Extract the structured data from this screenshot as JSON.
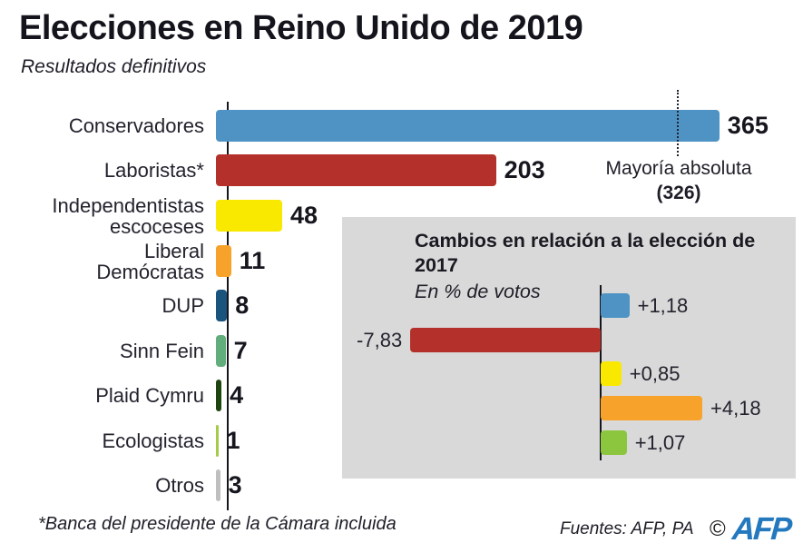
{
  "title": "Elecciones en Reino Unido de 2019",
  "subtitle": "Resultados definitivos",
  "footnote": "*Banca del presidente de la Cámara incluida",
  "sources": "Fuentes: AFP, PA",
  "logo": {
    "copyright": "©",
    "text": "AFP",
    "color": "#2478be"
  },
  "majority": {
    "label": "Mayoría absoluta",
    "value": 326,
    "value_label": "(326)"
  },
  "colors": {
    "conservadores": "#4e93c3",
    "laboristas": "#b3312a",
    "independentistas": "#f9e800",
    "liberal_democratas": "#f6a22b",
    "dup": "#1a547d",
    "sinn_fein": "#61ad7b",
    "plaid_cymru": "#1e440f",
    "ecologistas": "#a3cc49",
    "otros": "#bfbfbf",
    "inset_verdes": "#8cc63e",
    "inset_panel_bg": "#d9d9d9"
  },
  "chart_data": [
    {
      "type": "bar",
      "orientation": "horizontal",
      "title": "Elecciones en Reino Unido de 2019",
      "subtitle": "Resultados definitivos",
      "categories": [
        "Conservadores",
        "Laboristas*",
        "Independentistas escoceses",
        "Liberal Demócratas",
        "DUP",
        "Sinn Fein",
        "Plaid Cymru",
        "Ecologistas",
        "Otros"
      ],
      "category_labels": [
        "Conservadores",
        "Laboristas*",
        "Independentistas\nescoceses",
        "Liberal\nDemócratas",
        "DUP",
        "Sinn Fein",
        "Plaid Cymru",
        "Ecologistas",
        "Otros"
      ],
      "values": [
        365,
        203,
        48,
        11,
        8,
        7,
        4,
        1,
        3
      ],
      "value_labels": [
        "365",
        "203",
        "48",
        "11",
        "8",
        "7",
        "4",
        "1",
        "3"
      ],
      "colors": [
        "#4e93c3",
        "#b3312a",
        "#f9e800",
        "#f6a22b",
        "#1a547d",
        "#61ad7b",
        "#1e440f",
        "#a3cc49",
        "#bfbfbf"
      ],
      "xlim": [
        0,
        365
      ],
      "grid": false,
      "legend": false,
      "annotations": [
        {
          "label": "Mayoría absoluta",
          "value": 326,
          "value_label": "(326)",
          "style": "dotted-vertical-line"
        }
      ]
    },
    {
      "type": "bar",
      "orientation": "horizontal",
      "title": "Cambios en relación a la elección de 2017",
      "subtitle": "En % de votos",
      "values": [
        1.18,
        -7.83,
        0.85,
        4.18,
        1.07
      ],
      "value_labels": [
        "+1,18",
        "-7,83",
        "+0,85",
        "+4,18",
        "+1,07"
      ],
      "colors": [
        "#4e93c3",
        "#b3312a",
        "#f9e800",
        "#f6a22b",
        "#8cc63e"
      ],
      "grid": false,
      "legend": false,
      "baseline": 0
    }
  ]
}
